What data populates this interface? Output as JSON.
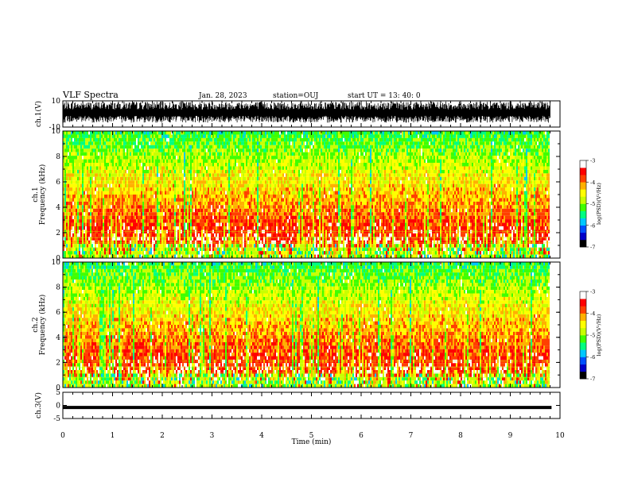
{
  "header": {
    "title": "VLF Spectra",
    "date": "Jan. 28, 2023",
    "station": "station=OUJ",
    "start_ut": "start UT = 13: 40: 0"
  },
  "colors": {
    "black": "#000000",
    "spectrogram_scale": [
      "#000000",
      "#0000c8",
      "#0050ff",
      "#00c8ff",
      "#00ff80",
      "#40ff00",
      "#c8ff00",
      "#ffff00",
      "#ffb000",
      "#ff4000",
      "#ff0000",
      "#ffffff"
    ]
  },
  "chart_data": [
    {
      "id": "ch1_waveform",
      "type": "line",
      "ylabel": "ch.1(V)",
      "ylim": [
        -10,
        10
      ],
      "yticks": [
        "10",
        "-10"
      ],
      "xlim": [
        0,
        10
      ],
      "description_values": {
        "approx_range": [
          -10,
          10
        ]
      }
    },
    {
      "id": "ch1_spectrogram",
      "type": "heatmap",
      "ylabel": "ch.1",
      "ylabel2": "Frequency (kHz)",
      "ylim": [
        0,
        10
      ],
      "yticks": [
        "0",
        "2",
        "4",
        "6",
        "8",
        "10"
      ],
      "xlim": [
        0,
        9.83
      ],
      "colorbar": {
        "label": "log(PSD)(V²/Hz)",
        "range": [
          -7,
          -3
        ],
        "ticks": [
          "-3",
          "-4",
          "-5",
          "-6",
          "-7"
        ]
      }
    },
    {
      "id": "ch2_spectrogram",
      "type": "heatmap",
      "ylabel": "ch.2",
      "ylabel2": "Frequency (kHz)",
      "ylim": [
        0,
        10
      ],
      "yticks": [
        "0",
        "2",
        "4",
        "6",
        "8",
        "10"
      ],
      "xlim": [
        0,
        9.83
      ],
      "colorbar": {
        "label": "log(PSD)(V²/Hz)",
        "range": [
          -7,
          -3
        ],
        "ticks": [
          "-3",
          "-4",
          "-5",
          "-6",
          "-7"
        ]
      }
    },
    {
      "id": "ch3_waveform",
      "type": "line",
      "ylabel": "ch.3(V)",
      "ylim": [
        -5,
        5
      ],
      "yticks": [
        "5",
        "0",
        "-5"
      ],
      "xlim": [
        0,
        10
      ],
      "series": [
        {
          "x": [
            0,
            9.83
          ],
          "y": [
            -0.8,
            -0.8
          ]
        }
      ],
      "xlabel": "Time (min)",
      "xticks": [
        "0",
        "1",
        "2",
        "3",
        "4",
        "5",
        "6",
        "7",
        "8",
        "9",
        "10"
      ]
    }
  ]
}
